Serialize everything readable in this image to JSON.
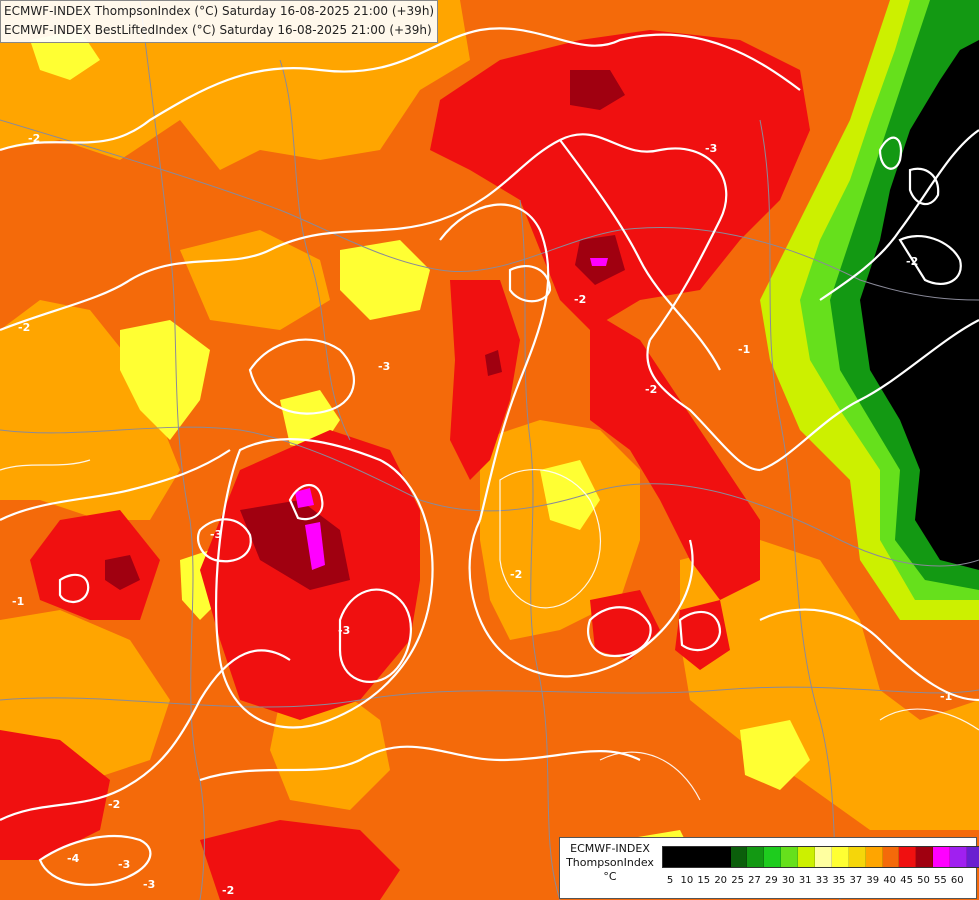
{
  "title": {
    "line1": "ECMWF-INDEX ThompsonIndex (°C) Saturday 16-08-2025 21:00 (+39h)",
    "line2": "ECMWF-INDEX BestLiftedIndex (°C) Saturday 16-08-2025 21:00 (+39h)"
  },
  "legend": {
    "model": "ECMWF-INDEX",
    "parameter": "ThompsonIndex",
    "unit": "°C",
    "ticks": [
      "5",
      "10",
      "15",
      "20",
      "25",
      "27",
      "29",
      "30",
      "31",
      "33",
      "35",
      "37",
      "39",
      "40",
      "45",
      "50",
      "55",
      "60"
    ],
    "colors": [
      "#000000",
      "#000000",
      "#000000",
      "#000000",
      "#0b5e0b",
      "#139913",
      "#1ecc1e",
      "#66e01c",
      "#ccf000",
      "#ffffa0",
      "#ffff33",
      "#f5d60a",
      "#ffa500",
      "#f46a0a",
      "#f01010",
      "#a00010",
      "#ff00ff",
      "#a020f0",
      "#6a1fd0",
      "#3a1fe0",
      "#0a1ef5"
    ]
  },
  "contour_labels": [
    "-2",
    "-2",
    "-2",
    "-3",
    "-3",
    "-3",
    "-2",
    "-1",
    "-2",
    "-3",
    "-2",
    "-2",
    "-1",
    "-2",
    "-3",
    "-3",
    "-4",
    "-1"
  ],
  "icons": [
    "map-canvas"
  ]
}
